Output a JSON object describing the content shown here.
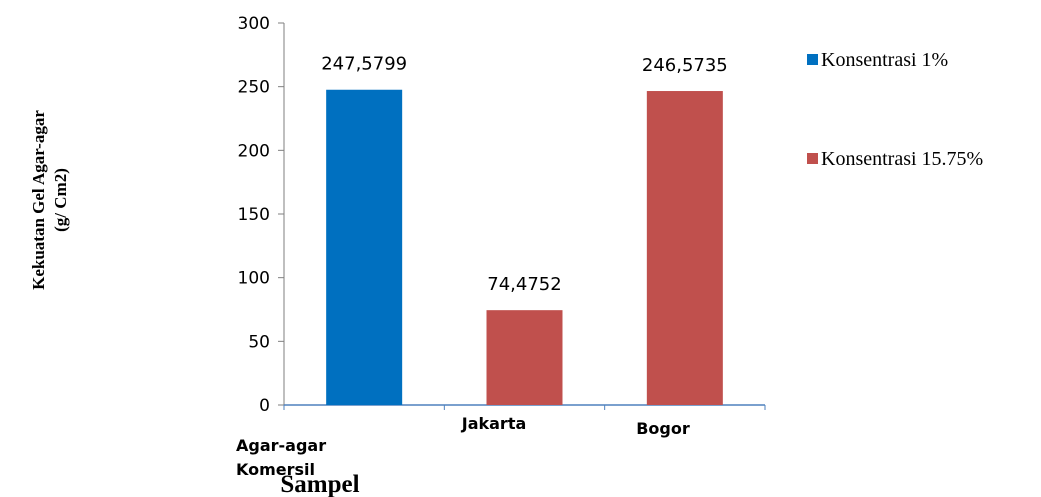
{
  "chart_data": {
    "type": "bar",
    "categories": [
      "Agar-agar Komersil",
      "Jakarta",
      "Bogor"
    ],
    "category_lines": [
      [
        "Agar-agar",
        "Komersil"
      ],
      [
        "Jakarta"
      ],
      [
        "Bogor"
      ]
    ],
    "series": [
      {
        "name": "Konsentrasi 1%",
        "color": "#0070C0",
        "values": [
          247.5799,
          null,
          null
        ]
      },
      {
        "name": "Konsentrasi 15.75%",
        "color": "#C0504D",
        "values": [
          null,
          74.4752,
          246.5735
        ]
      }
    ],
    "data_labels": [
      "247,5799",
      "74,4752",
      "246,5735"
    ],
    "xlabel": "Sampel",
    "ylabel_lines": [
      "Kekuatan Gel Agar-agar",
      "(g/ Cm2)"
    ],
    "ylim": [
      0,
      300
    ],
    "yticks": [
      0,
      50,
      100,
      150,
      200,
      250,
      300
    ],
    "grid": false,
    "legend_position": "right"
  }
}
